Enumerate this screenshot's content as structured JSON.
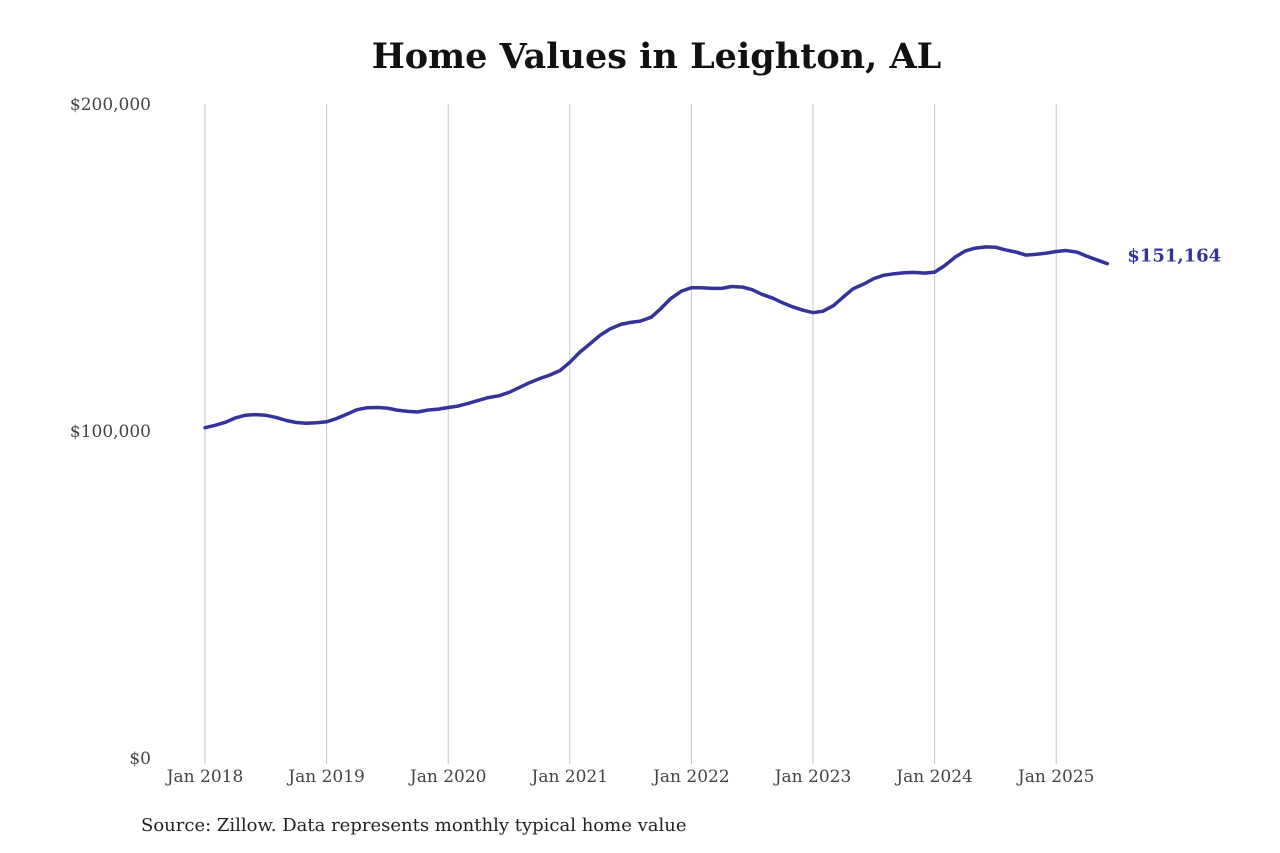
{
  "chart_data": {
    "type": "line",
    "title": "Home Values in Leighton, AL",
    "source": "Source: Zillow. Data represents monthly typical home value",
    "x_ticks": [
      "Jan 2018",
      "Jan 2019",
      "Jan 2020",
      "Jan 2021",
      "Jan 2022",
      "Jan 2023",
      "Jan 2024",
      "Jan 2025"
    ],
    "y_ticks": [
      "$0",
      "$100,000",
      "$200,000"
    ],
    "ylim": [
      0,
      200000
    ],
    "xlim": [
      2017.75,
      2025.9
    ],
    "grid": "vertical",
    "line_color": "#33339a",
    "end_label": "$151,164",
    "series": [
      {
        "x": [
          2018.0,
          2018.08,
          2018.17,
          2018.25,
          2018.33,
          2018.42,
          2018.5,
          2018.58,
          2018.67,
          2018.75,
          2018.83,
          2018.92,
          2019.0,
          2019.08,
          2019.17,
          2019.25,
          2019.33,
          2019.42,
          2019.5,
          2019.58,
          2019.67,
          2019.75,
          2019.83,
          2019.92,
          2020.0,
          2020.08,
          2020.17,
          2020.25,
          2020.33,
          2020.42,
          2020.5,
          2020.58,
          2020.67,
          2020.75,
          2020.83,
          2020.92,
          2021.0,
          2021.08,
          2021.17,
          2021.25,
          2021.33,
          2021.42,
          2021.5,
          2021.58,
          2021.67,
          2021.75,
          2021.83,
          2021.92,
          2022.0,
          2022.08,
          2022.17,
          2022.25,
          2022.33,
          2022.42,
          2022.5,
          2022.58,
          2022.67,
          2022.75,
          2022.83,
          2022.92,
          2023.0,
          2023.08,
          2023.17,
          2023.25,
          2023.33,
          2023.42,
          2023.5,
          2023.58,
          2023.67,
          2023.75,
          2023.83,
          2023.92,
          2024.0,
          2024.08,
          2024.17,
          2024.25,
          2024.33,
          2024.42,
          2024.5,
          2024.58,
          2024.67,
          2024.75,
          2024.83,
          2024.92,
          2025.0,
          2025.08,
          2025.17,
          2025.25,
          2025.33,
          2025.42
        ],
        "values": [
          101000,
          101700,
          102700,
          104000,
          104800,
          105000,
          104800,
          104200,
          103200,
          102600,
          102400,
          102500,
          102800,
          103800,
          105200,
          106500,
          107100,
          107200,
          107000,
          106400,
          106000,
          105800,
          106400,
          106700,
          107200,
          107600,
          108500,
          109400,
          110200,
          110800,
          111800,
          113200,
          114800,
          116000,
          117000,
          118500,
          121000,
          124000,
          126800,
          129300,
          131200,
          132600,
          133200,
          133600,
          134800,
          137500,
          140500,
          142800,
          143800,
          143800,
          143600,
          143600,
          144200,
          144000,
          143200,
          141800,
          140600,
          139200,
          138000,
          136900,
          136200,
          136600,
          138400,
          141000,
          143500,
          145000,
          146600,
          147600,
          148100,
          148400,
          148500,
          148300,
          148600,
          150500,
          153200,
          155000,
          155900,
          156300,
          156200,
          155400,
          154700,
          153800,
          154000,
          154400,
          154900,
          155200,
          154700,
          153500,
          152400,
          151164
        ]
      }
    ]
  }
}
